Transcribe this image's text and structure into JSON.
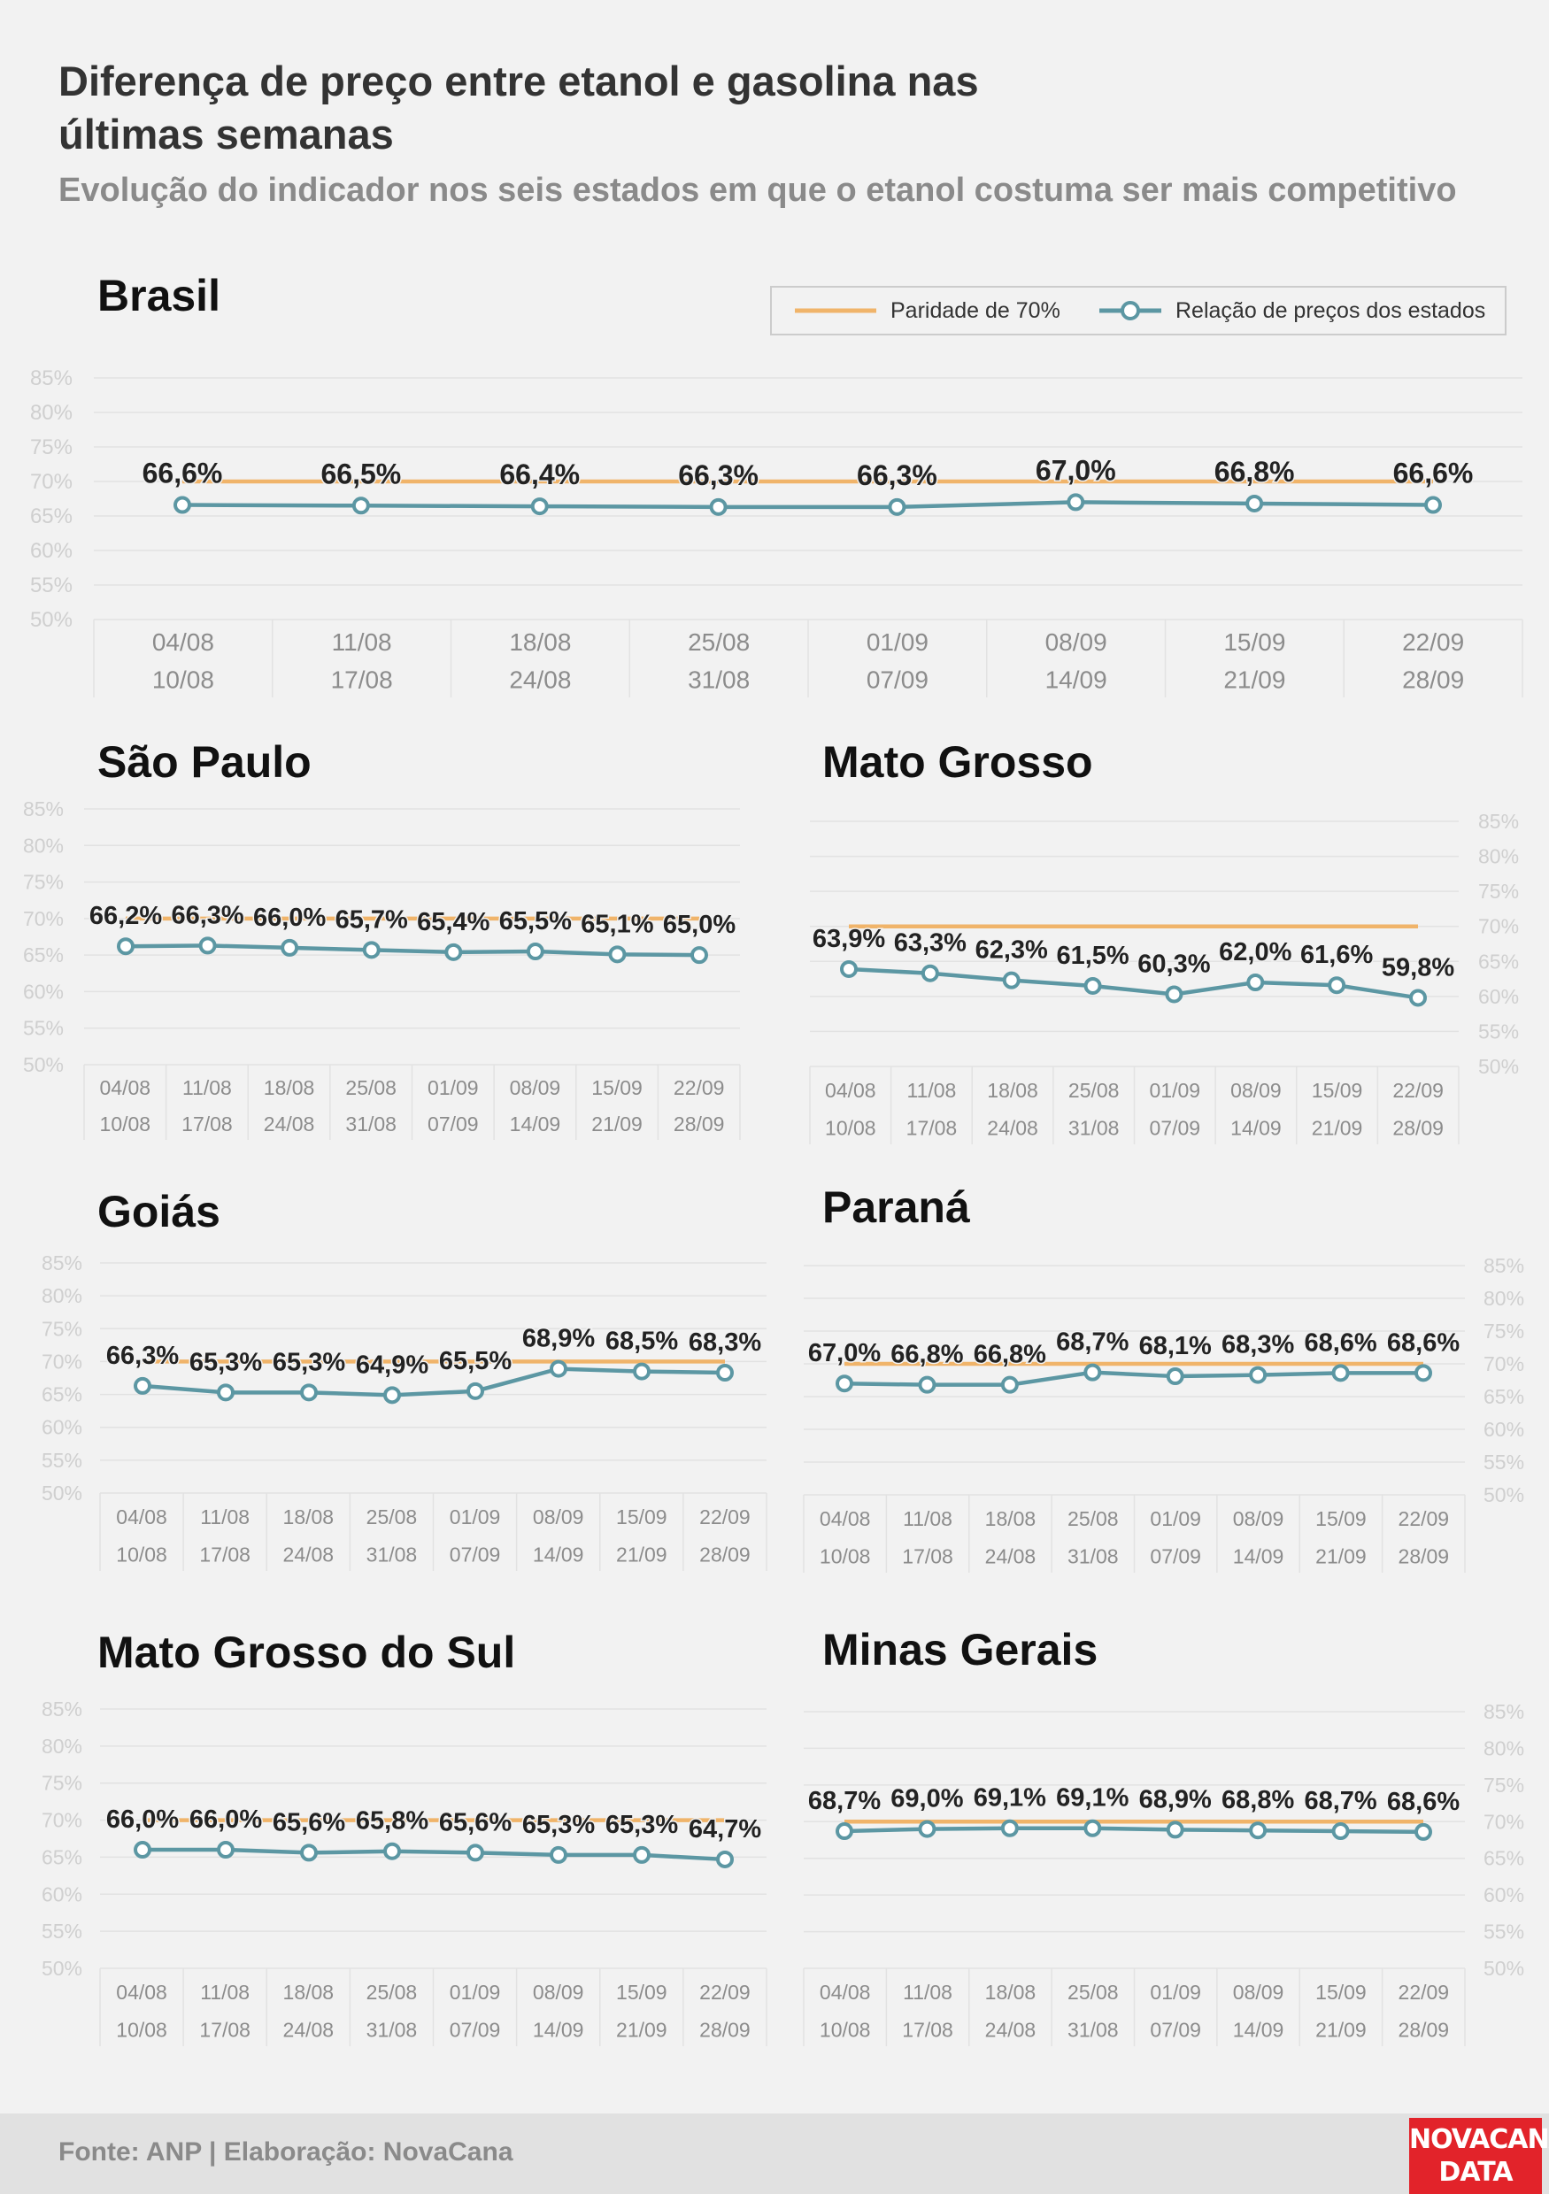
{
  "title": "Diferença de preço entre etanol e gasolina nas últimas semanas",
  "subtitle": "Evolução do indicador nos seis estados em que o etanol costuma ser mais competitivo",
  "legend": {
    "parity_label": "Paridade de 70%",
    "ratio_label": "Relação de preços dos estados"
  },
  "footer": {
    "source": "Fonte: ANP | Elaboração: NovaCana",
    "logo_line1": "NOVACANA",
    "logo_line2": "DATA"
  },
  "colors": {
    "background": "#f2f2f2",
    "parity_line": "#f0b46a",
    "ratio_line": "#5c97a3",
    "marker_fill": "#ffffff",
    "grid": "#e2e2e2",
    "tick_text": "#cfcfcf",
    "category_text": "#8c8c8c",
    "data_label": "#222222",
    "logo": "#e2232a"
  },
  "chart_data": [
    {
      "id": "brasil",
      "type": "line",
      "title": "Brasil",
      "categories": [
        [
          "04/08",
          "10/08"
        ],
        [
          "11/08",
          "17/08"
        ],
        [
          "18/08",
          "24/08"
        ],
        [
          "25/08",
          "31/08"
        ],
        [
          "01/09",
          "07/09"
        ],
        [
          "08/09",
          "14/09"
        ],
        [
          "15/09",
          "21/09"
        ],
        [
          "22/09",
          "28/09"
        ]
      ],
      "series": [
        {
          "name": "Paridade de 70%",
          "values": [
            70,
            70,
            70,
            70,
            70,
            70,
            70,
            70
          ]
        },
        {
          "name": "Relação de preços dos estados",
          "values": [
            66.6,
            66.5,
            66.4,
            66.3,
            66.3,
            67.0,
            66.8,
            66.6
          ]
        }
      ],
      "data_labels": [
        "66,6%",
        "66,5%",
        "66,4%",
        "66,3%",
        "66,3%",
        "67,0%",
        "66,8%",
        "66,6%"
      ],
      "ylim": [
        50,
        85
      ],
      "yticks": [
        "50%",
        "55%",
        "60%",
        "65%",
        "70%",
        "75%",
        "80%",
        "85%"
      ],
      "yaxis_side": "left",
      "grid": true,
      "legend": "top-right"
    },
    {
      "id": "sao-paulo",
      "type": "line",
      "title": "São Paulo",
      "categories": [
        [
          "04/08",
          "10/08"
        ],
        [
          "11/08",
          "17/08"
        ],
        [
          "18/08",
          "24/08"
        ],
        [
          "25/08",
          "31/08"
        ],
        [
          "01/09",
          "07/09"
        ],
        [
          "08/09",
          "14/09"
        ],
        [
          "15/09",
          "21/09"
        ],
        [
          "22/09",
          "28/09"
        ]
      ],
      "series": [
        {
          "name": "Paridade de 70%",
          "values": [
            70,
            70,
            70,
            70,
            70,
            70,
            70,
            70
          ]
        },
        {
          "name": "Relação de preços dos estados",
          "values": [
            66.2,
            66.3,
            66.0,
            65.7,
            65.4,
            65.5,
            65.1,
            65.0
          ]
        }
      ],
      "data_labels": [
        "66,2%",
        "66,3%",
        "66,0%",
        "65,7%",
        "65,4%",
        "65,5%",
        "65,1%",
        "65,0%"
      ],
      "ylim": [
        50,
        85
      ],
      "yticks": [
        "50%",
        "55%",
        "60%",
        "65%",
        "70%",
        "75%",
        "80%",
        "85%"
      ],
      "yaxis_side": "left",
      "grid": true
    },
    {
      "id": "mato-grosso",
      "type": "line",
      "title": "Mato Grosso",
      "categories": [
        [
          "04/08",
          "10/08"
        ],
        [
          "11/08",
          "17/08"
        ],
        [
          "18/08",
          "24/08"
        ],
        [
          "25/08",
          "31/08"
        ],
        [
          "01/09",
          "07/09"
        ],
        [
          "08/09",
          "14/09"
        ],
        [
          "15/09",
          "21/09"
        ],
        [
          "22/09",
          "28/09"
        ]
      ],
      "series": [
        {
          "name": "Paridade de 70%",
          "values": [
            70,
            70,
            70,
            70,
            70,
            70,
            70,
            70
          ]
        },
        {
          "name": "Relação de preços dos estados",
          "values": [
            63.9,
            63.3,
            62.3,
            61.5,
            60.3,
            62.0,
            61.6,
            59.8
          ]
        }
      ],
      "data_labels": [
        "63,9%",
        "63,3%",
        "62,3%",
        "61,5%",
        "60,3%",
        "62,0%",
        "61,6%",
        "59,8%"
      ],
      "ylim": [
        50,
        85
      ],
      "yticks": [
        "50%",
        "55%",
        "60%",
        "65%",
        "70%",
        "75%",
        "80%",
        "85%"
      ],
      "yaxis_side": "right",
      "grid": true
    },
    {
      "id": "goias",
      "type": "line",
      "title": "Goiás",
      "categories": [
        [
          "04/08",
          "10/08"
        ],
        [
          "11/08",
          "17/08"
        ],
        [
          "18/08",
          "24/08"
        ],
        [
          "25/08",
          "31/08"
        ],
        [
          "01/09",
          "07/09"
        ],
        [
          "08/09",
          "14/09"
        ],
        [
          "15/09",
          "21/09"
        ],
        [
          "22/09",
          "28/09"
        ]
      ],
      "series": [
        {
          "name": "Paridade de 70%",
          "values": [
            70,
            70,
            70,
            70,
            70,
            70,
            70,
            70
          ]
        },
        {
          "name": "Relação de preços dos estados",
          "values": [
            66.3,
            65.3,
            65.3,
            64.9,
            65.5,
            68.9,
            68.5,
            68.3
          ]
        }
      ],
      "data_labels": [
        "66,3%",
        "65,3%",
        "65,3%",
        "64,9%",
        "65,5%",
        "68,9%",
        "68,5%",
        "68,3%"
      ],
      "ylim": [
        50,
        85
      ],
      "yticks": [
        "50%",
        "55%",
        "60%",
        "65%",
        "70%",
        "75%",
        "80%",
        "85%"
      ],
      "yaxis_side": "left",
      "grid": true
    },
    {
      "id": "parana",
      "type": "line",
      "title": "Paraná",
      "categories": [
        [
          "04/08",
          "10/08"
        ],
        [
          "11/08",
          "17/08"
        ],
        [
          "18/08",
          "24/08"
        ],
        [
          "25/08",
          "31/08"
        ],
        [
          "01/09",
          "07/09"
        ],
        [
          "08/09",
          "14/09"
        ],
        [
          "15/09",
          "21/09"
        ],
        [
          "22/09",
          "28/09"
        ]
      ],
      "series": [
        {
          "name": "Paridade de 70%",
          "values": [
            70,
            70,
            70,
            70,
            70,
            70,
            70,
            70
          ]
        },
        {
          "name": "Relação de preços dos estados",
          "values": [
            67.0,
            66.8,
            66.8,
            68.7,
            68.1,
            68.3,
            68.6,
            68.6
          ]
        }
      ],
      "data_labels": [
        "67,0%",
        "66,8%",
        "66,8%",
        "68,7%",
        "68,1%",
        "68,3%",
        "68,6%",
        "68,6%"
      ],
      "ylim": [
        50,
        85
      ],
      "yticks": [
        "50%",
        "55%",
        "60%",
        "65%",
        "70%",
        "75%",
        "80%",
        "85%"
      ],
      "yaxis_side": "right",
      "grid": true
    },
    {
      "id": "mato-grosso-do-sul",
      "type": "line",
      "title": "Mato Grosso do Sul",
      "categories": [
        [
          "04/08",
          "10/08"
        ],
        [
          "11/08",
          "17/08"
        ],
        [
          "18/08",
          "24/08"
        ],
        [
          "25/08",
          "31/08"
        ],
        [
          "01/09",
          "07/09"
        ],
        [
          "08/09",
          "14/09"
        ],
        [
          "15/09",
          "21/09"
        ],
        [
          "22/09",
          "28/09"
        ]
      ],
      "series": [
        {
          "name": "Paridade de 70%",
          "values": [
            70,
            70,
            70,
            70,
            70,
            70,
            70,
            70
          ]
        },
        {
          "name": "Relação de preços dos estados",
          "values": [
            66.0,
            66.0,
            65.6,
            65.8,
            65.6,
            65.3,
            65.3,
            64.7
          ]
        }
      ],
      "data_labels": [
        "66,0%",
        "66,0%",
        "65,6%",
        "65,8%",
        "65,6%",
        "65,3%",
        "65,3%",
        "64,7%"
      ],
      "ylim": [
        50,
        85
      ],
      "yticks": [
        "50%",
        "55%",
        "60%",
        "65%",
        "70%",
        "75%",
        "80%",
        "85%"
      ],
      "yaxis_side": "left",
      "grid": true
    },
    {
      "id": "minas-gerais",
      "type": "line",
      "title": "Minas Gerais",
      "categories": [
        [
          "04/08",
          "10/08"
        ],
        [
          "11/08",
          "17/08"
        ],
        [
          "18/08",
          "24/08"
        ],
        [
          "25/08",
          "31/08"
        ],
        [
          "01/09",
          "07/09"
        ],
        [
          "08/09",
          "14/09"
        ],
        [
          "15/09",
          "21/09"
        ],
        [
          "22/09",
          "28/09"
        ]
      ],
      "series": [
        {
          "name": "Paridade de 70%",
          "values": [
            70,
            70,
            70,
            70,
            70,
            70,
            70,
            70
          ]
        },
        {
          "name": "Relação de preços dos estados",
          "values": [
            68.7,
            69.0,
            69.1,
            69.1,
            68.9,
            68.8,
            68.7,
            68.6
          ]
        }
      ],
      "data_labels": [
        "68,7%",
        "69,0%",
        "69,1%",
        "69,1%",
        "68,9%",
        "68,8%",
        "68,7%",
        "68,6%"
      ],
      "ylim": [
        50,
        85
      ],
      "yticks": [
        "50%",
        "55%",
        "60%",
        "65%",
        "70%",
        "75%",
        "80%",
        "85%"
      ],
      "yaxis_side": "right",
      "grid": true
    }
  ]
}
